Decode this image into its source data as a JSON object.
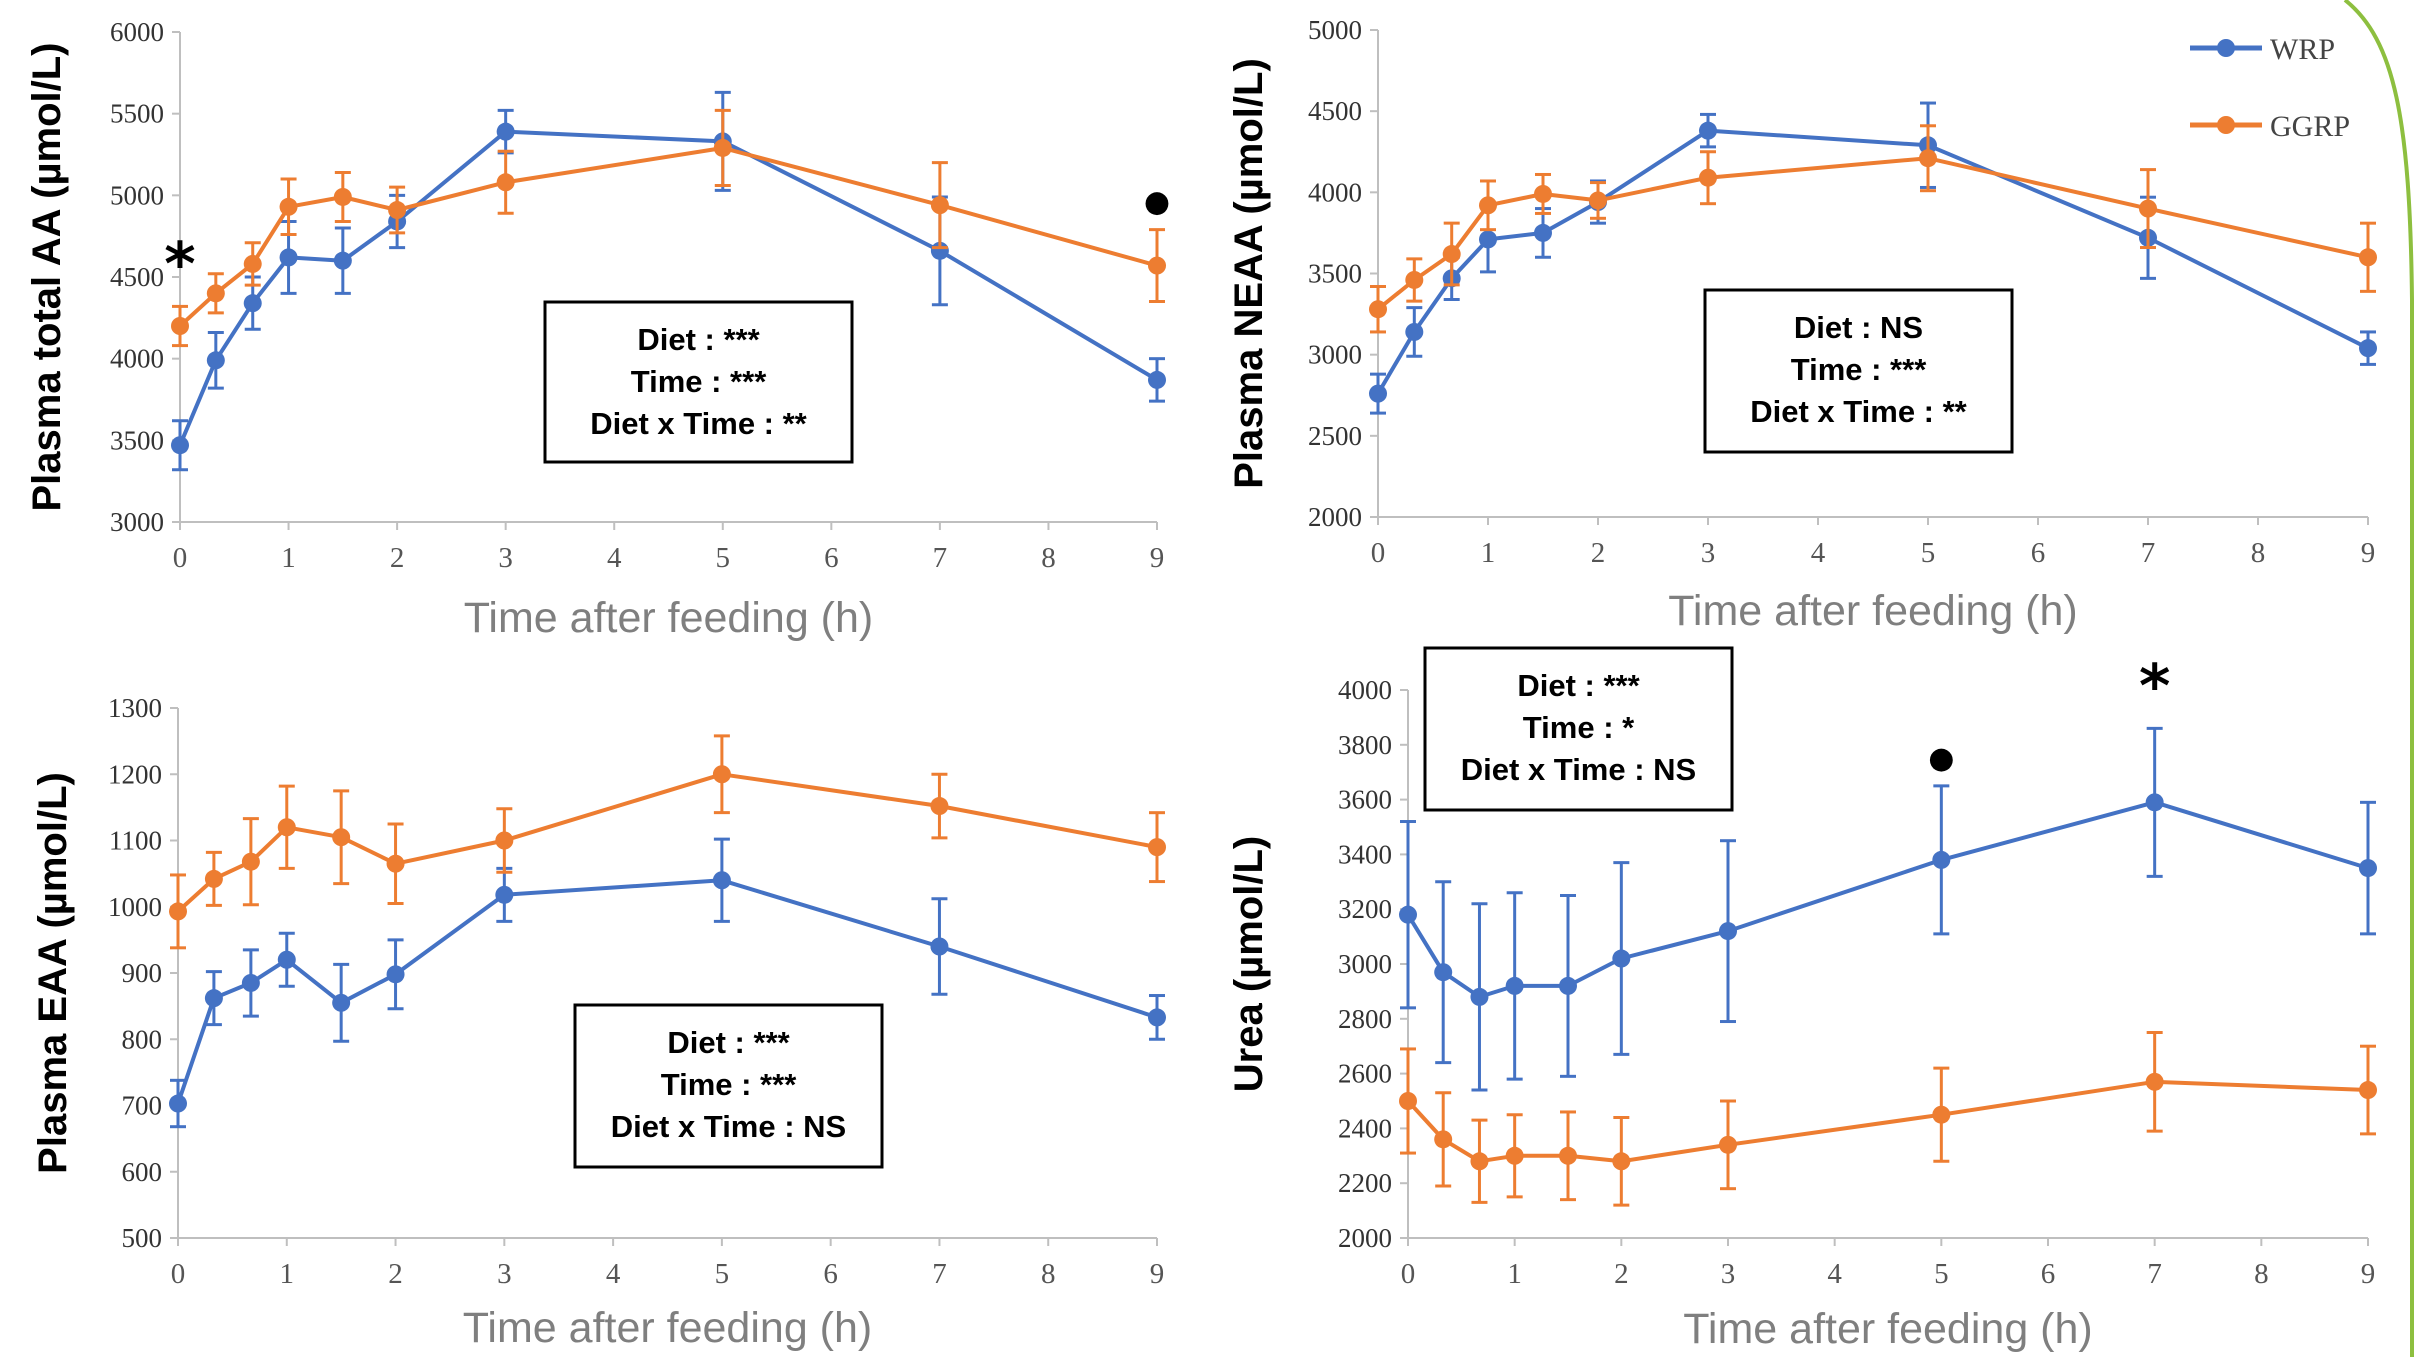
{
  "legend": {
    "position": "top-right of top-right panel",
    "entries": [
      {
        "name": "WRP",
        "color": "#4472C4"
      },
      {
        "name": "GGRP",
        "color": "#ED7D31"
      }
    ]
  },
  "colors": {
    "wrp": "#4472C4",
    "ggrp": "#ED7D31",
    "axis": "#BFBFBF",
    "xlabel_text": "#7F7F7F",
    "decor_arc": "#8DBF3F"
  },
  "chart_data": [
    {
      "type": "line",
      "title": "",
      "xlabel": "Time after feeding (h)",
      "ylabel": "Plasma total AA (µmol/L)",
      "xlim": [
        0,
        9
      ],
      "ylim": [
        3000,
        6000
      ],
      "xticks": [
        0,
        1,
        2,
        3,
        4,
        5,
        6,
        7,
        8,
        9
      ],
      "yticks": [
        3000,
        3500,
        4000,
        4500,
        5000,
        5500,
        6000
      ],
      "grid": false,
      "series": [
        {
          "name": "WRP",
          "x": [
            0,
            0.33,
            0.67,
            1,
            1.5,
            2,
            3,
            5,
            7,
            9
          ],
          "y": [
            3470,
            3990,
            4340,
            4620,
            4600,
            4840,
            5390,
            5330,
            4660,
            3870
          ],
          "err": [
            150,
            170,
            160,
            220,
            200,
            160,
            130,
            300,
            330,
            130
          ]
        },
        {
          "name": "GGRP",
          "x": [
            0,
            0.33,
            0.67,
            1,
            1.5,
            2,
            3,
            5,
            7,
            9
          ],
          "y": [
            4200,
            4400,
            4580,
            4930,
            4990,
            4910,
            5080,
            5290,
            4940,
            4570
          ],
          "err": [
            120,
            120,
            130,
            170,
            150,
            140,
            190,
            230,
            260,
            220
          ]
        }
      ],
      "significance_markers": [
        {
          "x": 0,
          "symbol": "*"
        },
        {
          "x": 9,
          "symbol": "●"
        }
      ],
      "stats_box": [
        "Diet : ***",
        "Time : ***",
        "Diet x Time : **"
      ]
    },
    {
      "type": "line",
      "title": "",
      "xlabel": "Time after feeding (h)",
      "ylabel": "Plasma NEAA (µmol/L)",
      "xlim": [
        0,
        9
      ],
      "ylim": [
        2000,
        5000
      ],
      "xticks": [
        0,
        1,
        2,
        3,
        4,
        5,
        6,
        7,
        8,
        9
      ],
      "yticks": [
        2000,
        2500,
        3000,
        3500,
        4000,
        4500,
        5000
      ],
      "grid": false,
      "series": [
        {
          "name": "WRP",
          "x": [
            0,
            0.33,
            0.67,
            1,
            1.5,
            2,
            3,
            5,
            7,
            9
          ],
          "y": [
            2760,
            3140,
            3470,
            3710,
            3750,
            3940,
            4380,
            4290,
            3720,
            3040
          ],
          "err": [
            120,
            150,
            130,
            200,
            150,
            130,
            100,
            260,
            250,
            100
          ]
        },
        {
          "name": "GGRP",
          "x": [
            0,
            0.33,
            0.67,
            1,
            1.5,
            2,
            3,
            5,
            7,
            9
          ],
          "y": [
            3280,
            3460,
            3620,
            3920,
            3990,
            3950,
            4090,
            4210,
            3900,
            3600
          ],
          "err": [
            140,
            130,
            190,
            150,
            120,
            110,
            160,
            200,
            240,
            210
          ]
        }
      ],
      "significance_markers": [],
      "stats_box": [
        "Diet : NS",
        "Time : ***",
        "Diet x Time : **"
      ]
    },
    {
      "type": "line",
      "title": "",
      "xlabel": "Time after feeding (h)",
      "ylabel": "Plasma EAA (µmol/L)",
      "xlim": [
        0,
        9
      ],
      "ylim": [
        500,
        1300
      ],
      "xticks": [
        0,
        1,
        2,
        3,
        4,
        5,
        6,
        7,
        8,
        9
      ],
      "yticks": [
        500,
        600,
        700,
        800,
        900,
        1000,
        1100,
        1200,
        1300
      ],
      "grid": false,
      "series": [
        {
          "name": "WRP",
          "x": [
            0,
            0.33,
            0.67,
            1,
            1.5,
            2,
            3,
            5,
            7,
            9
          ],
          "y": [
            703,
            862,
            885,
            920,
            855,
            898,
            1018,
            1040,
            940,
            833
          ],
          "err": [
            35,
            40,
            50,
            40,
            58,
            52,
            40,
            62,
            72,
            33
          ]
        },
        {
          "name": "GGRP",
          "x": [
            0,
            0.33,
            0.67,
            1,
            1.5,
            2,
            3,
            5,
            7,
            9
          ],
          "y": [
            993,
            1042,
            1068,
            1120,
            1105,
            1065,
            1100,
            1200,
            1152,
            1090
          ],
          "err": [
            55,
            40,
            65,
            62,
            70,
            60,
            48,
            58,
            48,
            52
          ]
        }
      ],
      "significance_markers": [],
      "stats_box": [
        "Diet : ***",
        "Time : ***",
        "Diet x Time : NS"
      ]
    },
    {
      "type": "line",
      "title": "",
      "xlabel": "Time after feeding (h)",
      "ylabel": "Urea (µmol/L)",
      "xlim": [
        0,
        9
      ],
      "ylim": [
        2000,
        4000
      ],
      "xticks": [
        0,
        1,
        2,
        3,
        4,
        5,
        6,
        7,
        8,
        9
      ],
      "yticks": [
        2000,
        2200,
        2400,
        2600,
        2800,
        3000,
        3200,
        3400,
        3600,
        3800,
        4000
      ],
      "grid": false,
      "series": [
        {
          "name": "WRP",
          "x": [
            0,
            0.33,
            0.67,
            1,
            1.5,
            2,
            3,
            5,
            7,
            9
          ],
          "y": [
            3180,
            2970,
            2880,
            2920,
            2920,
            3020,
            3120,
            3380,
            3590,
            3350
          ],
          "err": [
            340,
            330,
            340,
            340,
            330,
            350,
            330,
            270,
            270,
            240
          ]
        },
        {
          "name": "GGRP",
          "x": [
            0,
            0.33,
            0.67,
            1,
            1.5,
            2,
            3,
            5,
            7,
            9
          ],
          "y": [
            2500,
            2360,
            2280,
            2300,
            2300,
            2280,
            2340,
            2450,
            2570,
            2540
          ],
          "err": [
            190,
            170,
            150,
            150,
            160,
            160,
            160,
            170,
            180,
            160
          ]
        }
      ],
      "significance_markers": [
        {
          "x": 5,
          "symbol": "●"
        },
        {
          "x": 7,
          "symbol": "*"
        }
      ],
      "stats_box": [
        "Diet : ***",
        "Time : *",
        "Diet x Time : NS"
      ]
    }
  ]
}
